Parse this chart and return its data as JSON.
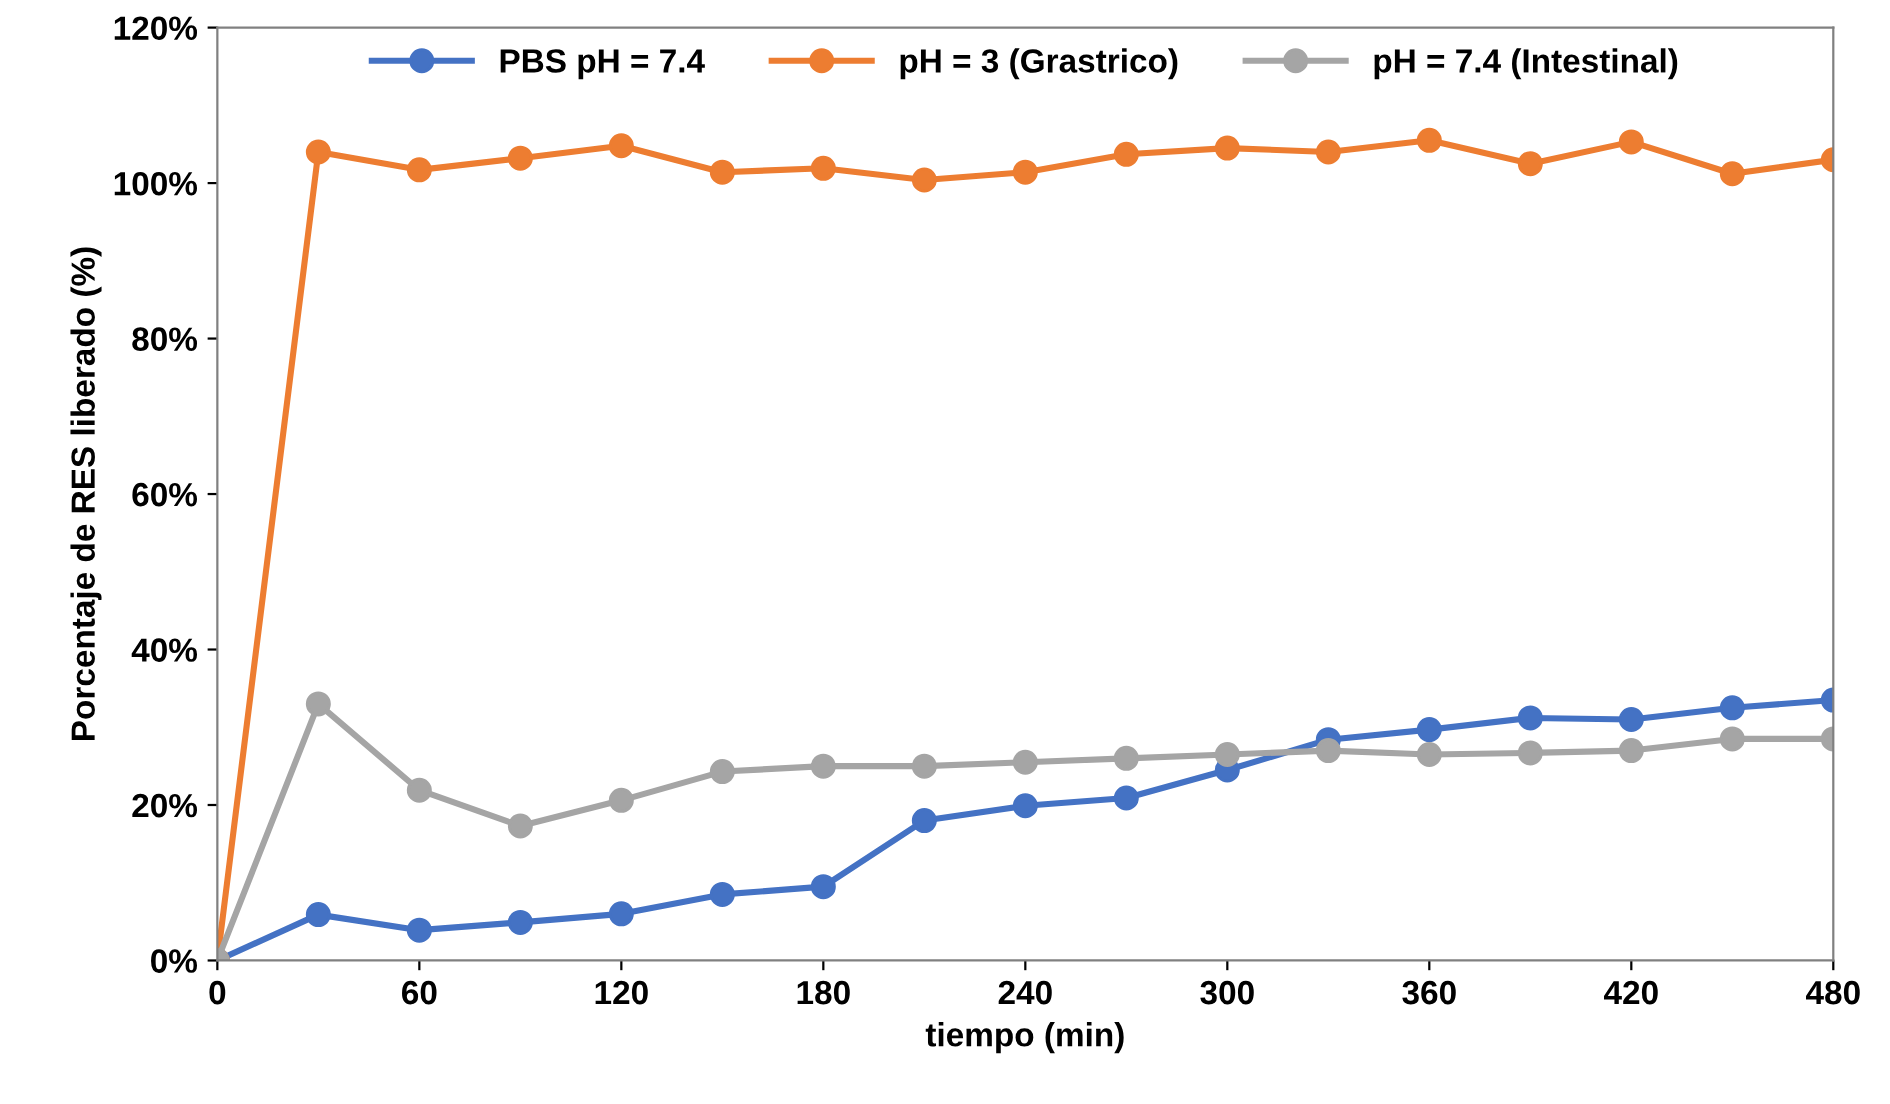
{
  "chart_data": {
    "type": "line",
    "xlabel": "tiempo (min)",
    "ylabel": "Porcentaje de RES liberado (%)",
    "x": [
      0,
      30,
      60,
      90,
      120,
      150,
      180,
      210,
      240,
      270,
      300,
      330,
      360,
      390,
      420,
      450,
      480
    ],
    "series": [
      {
        "name": "PBS pH = 7.4",
        "color": "#4472c4",
        "values": [
          0,
          5.9,
          3.9,
          4.9,
          6,
          8.5,
          9.5,
          18,
          19.9,
          20.9,
          24.5,
          28.4,
          29.7,
          31.2,
          31,
          32.5,
          33.5
        ]
      },
      {
        "name": "pH = 3 (Grastrico)",
        "color": "#ed7d31",
        "values": [
          0,
          104,
          101.7,
          103.2,
          104.8,
          101.4,
          101.9,
          100.4,
          101.4,
          103.7,
          104.5,
          104,
          105.5,
          102.5,
          105.3,
          101.2,
          103
        ]
      },
      {
        "name": "pH = 7.4 (Intestinal)",
        "color": "#a5a5a5",
        "values": [
          0,
          33,
          21.9,
          17.3,
          20.6,
          24.3,
          25,
          25,
          25.5,
          26,
          26.5,
          27,
          26.5,
          26.7,
          27,
          28.5,
          28.5
        ]
      }
    ],
    "xlim": [
      0,
      480
    ],
    "xticks": [
      0,
      60,
      120,
      180,
      240,
      300,
      360,
      420,
      480
    ],
    "ylim": [
      0,
      120
    ],
    "yticks": [
      {
        "value": 0,
        "label": "0%"
      },
      {
        "value": 20,
        "label": "20%"
      },
      {
        "value": 40,
        "label": "40%"
      },
      {
        "value": 60,
        "label": "60%"
      },
      {
        "value": 80,
        "label": "80%"
      },
      {
        "value": 100,
        "label": "100%"
      },
      {
        "value": 120,
        "label": "120%"
      }
    ],
    "grid": false,
    "legend": "top",
    "marker": "circle",
    "line_style": "solid"
  }
}
